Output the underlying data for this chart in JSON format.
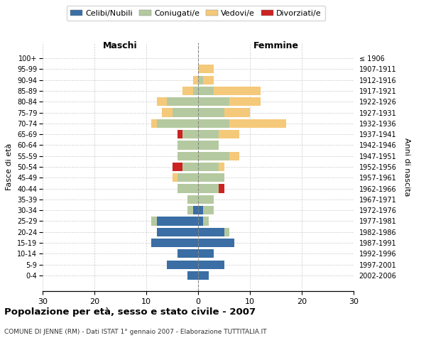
{
  "age_groups": [
    "0-4",
    "5-9",
    "10-14",
    "15-19",
    "20-24",
    "25-29",
    "30-34",
    "35-39",
    "40-44",
    "45-49",
    "50-54",
    "55-59",
    "60-64",
    "65-69",
    "70-74",
    "75-79",
    "80-84",
    "85-89",
    "90-94",
    "95-99",
    "100+"
  ],
  "birth_years": [
    "2002-2006",
    "1997-2001",
    "1992-1996",
    "1987-1991",
    "1982-1986",
    "1977-1981",
    "1972-1976",
    "1967-1971",
    "1962-1966",
    "1957-1961",
    "1952-1956",
    "1947-1951",
    "1942-1946",
    "1937-1941",
    "1932-1936",
    "1927-1931",
    "1922-1926",
    "1917-1921",
    "1912-1916",
    "1907-1911",
    "≤ 1906"
  ],
  "males": {
    "celibi": [
      2,
      6,
      4,
      9,
      8,
      8,
      1,
      0,
      0,
      0,
      0,
      0,
      0,
      0,
      0,
      0,
      0,
      0,
      0,
      0,
      0
    ],
    "coniugati": [
      0,
      0,
      0,
      0,
      0,
      1,
      1,
      2,
      4,
      4,
      3,
      4,
      4,
      3,
      8,
      5,
      6,
      1,
      0,
      0,
      0
    ],
    "vedovi": [
      0,
      0,
      0,
      0,
      0,
      0,
      0,
      0,
      0,
      1,
      0,
      0,
      0,
      0,
      1,
      2,
      2,
      2,
      1,
      0,
      0
    ],
    "divorziati": [
      0,
      0,
      0,
      0,
      0,
      0,
      0,
      0,
      0,
      0,
      2,
      0,
      0,
      1,
      0,
      0,
      0,
      0,
      0,
      0,
      0
    ]
  },
  "females": {
    "nubili": [
      2,
      5,
      3,
      7,
      5,
      1,
      1,
      0,
      0,
      0,
      0,
      0,
      0,
      0,
      0,
      0,
      0,
      0,
      0,
      0,
      0
    ],
    "coniugate": [
      0,
      0,
      0,
      0,
      1,
      1,
      2,
      3,
      4,
      5,
      4,
      6,
      4,
      4,
      6,
      5,
      6,
      3,
      1,
      0,
      0
    ],
    "vedove": [
      0,
      0,
      0,
      0,
      0,
      0,
      0,
      0,
      0,
      0,
      1,
      2,
      0,
      4,
      11,
      5,
      6,
      9,
      2,
      3,
      0
    ],
    "divorziate": [
      0,
      0,
      0,
      0,
      0,
      0,
      0,
      0,
      1,
      0,
      0,
      0,
      0,
      0,
      0,
      0,
      0,
      0,
      0,
      0,
      0
    ]
  },
  "colors": {
    "celibi_nubili": "#3a6ea5",
    "coniugati": "#b5c9a0",
    "vedovi": "#f5c97a",
    "divorziati": "#cc2222"
  },
  "xlim": 30,
  "title": "Popolazione per età, sesso e stato civile - 2007",
  "subtitle": "COMUNE DI JENNE (RM) - Dati ISTAT 1° gennaio 2007 - Elaborazione TUTTITALIA.IT",
  "xlabel_left": "Maschi",
  "xlabel_right": "Femmine",
  "ylabel_left": "Fasce di età",
  "ylabel_right": "Anni di nascita",
  "background_color": "#ffffff",
  "grid_color": "#cccccc"
}
